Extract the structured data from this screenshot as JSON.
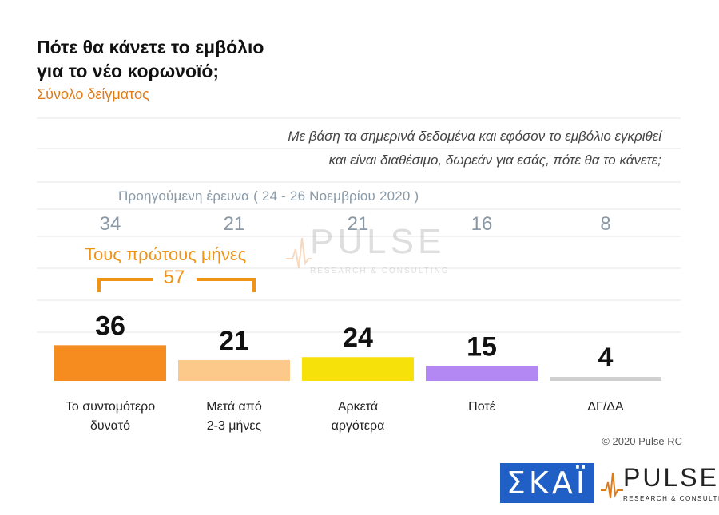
{
  "title_line1": "Πότε θα κάνετε το εμβόλιο",
  "title_line2": "για το νέο κορωνοϊό;",
  "subtitle": "Σύνολο δείγματος",
  "question_line1": "Με βάση τα σημερινά δεδομένα και εφόσον το εμβόλιο εγκριθεί",
  "question_line2": "και είναι διαθέσιμο, δωρεάν για εσάς, πότε θα το κάνετε;",
  "previous_survey_label": "Προηγούμενη έρευνα ( 24 - 26 Νοεμβρίου 2020 )",
  "group_label": "Τους πρώτους μήνες",
  "group_total": "57",
  "copyright": "© 2020 Pulse RC",
  "logos": {
    "skai": "ΣΚΑΪ",
    "pulse": "PULSE",
    "pulse_sub": "RESEARCH & CONSULTING"
  },
  "chart_data": {
    "type": "bar",
    "categories": [
      [
        "Το συντομότερο",
        "δυνατό"
      ],
      [
        "Μετά από",
        "2-3 μήνες"
      ],
      [
        "Αρκετά",
        "αργότερα"
      ],
      [
        "Ποτέ"
      ],
      [
        "ΔΓ/ΔΑ"
      ]
    ],
    "values": [
      36,
      21,
      24,
      15,
      4
    ],
    "previous_values": [
      34,
      21,
      21,
      16,
      8
    ],
    "colors": [
      "#f68b1f",
      "#fcc98a",
      "#f7e10a",
      "#b388f2",
      "#cfcfcf"
    ],
    "value_color": "#111111",
    "previous_value_color": "#8b99a6",
    "grid": true,
    "grid_color": "#e6e6e6"
  }
}
